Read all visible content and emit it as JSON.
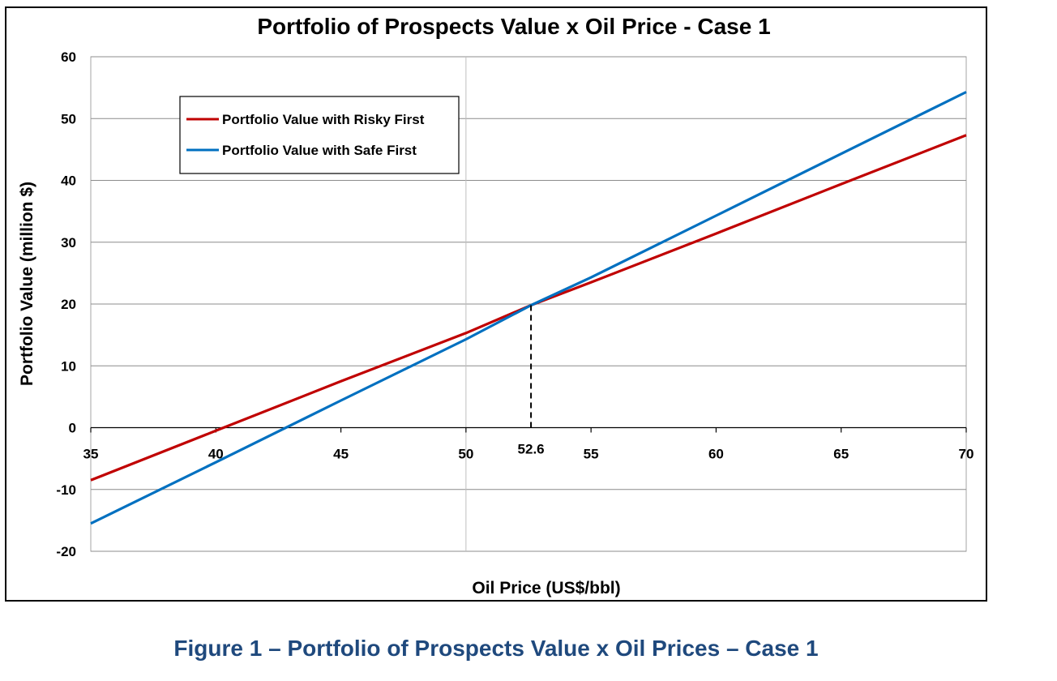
{
  "chart_data": {
    "type": "line",
    "title": "Portfolio of Prospects Value x Oil Price - Case 1",
    "xlabel": "Oil Price  (US$/bbl)",
    "ylabel": "Portfolio Value (million $)",
    "xlim": [
      35,
      70
    ],
    "ylim": [
      -20,
      60
    ],
    "x_ticks": [
      35,
      40,
      45,
      50,
      55,
      60,
      65,
      70
    ],
    "y_ticks": [
      -20,
      -10,
      0,
      10,
      20,
      30,
      40,
      50,
      60
    ],
    "grid": "horizontal",
    "legend_position": "top-left",
    "series": [
      {
        "name": "Portfolio Value with Risky First",
        "color": "#c00000",
        "x": [
          35,
          40,
          45,
          50,
          52.6,
          55,
          60,
          65,
          70
        ],
        "y": [
          -8.5,
          -0.5,
          7.5,
          15.3,
          19.8,
          23.5,
          31.4,
          39.4,
          47.3
        ]
      },
      {
        "name": "Portfolio Value with Safe First",
        "color": "#0070c0",
        "x": [
          35,
          40,
          45,
          50,
          52.6,
          55,
          60,
          65,
          70
        ],
        "y": [
          -15.5,
          -5.6,
          4.4,
          14.3,
          19.8,
          24.3,
          34.3,
          44.3,
          54.3
        ]
      }
    ],
    "annotations": [
      {
        "type": "vertical-dashed-line",
        "x": 52.6,
        "y": 19.8,
        "label": "52.6"
      }
    ],
    "extra_gridlines_x": [
      50
    ]
  },
  "caption": "Figure 1 – Portfolio of Prospects Value x Oil Prices – Case 1"
}
